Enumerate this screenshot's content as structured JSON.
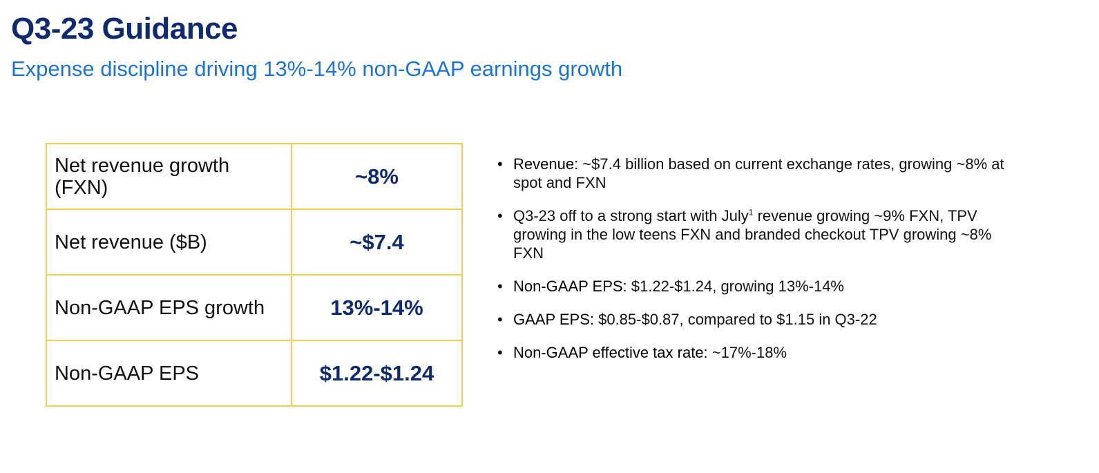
{
  "header": {
    "title": "Q3-23 Guidance",
    "subtitle": "Expense discipline driving 13%-14% non-GAAP earnings growth"
  },
  "table": {
    "rows": [
      {
        "label": "Net revenue growth (FXN)",
        "value": "~8%"
      },
      {
        "label": "Net revenue ($B)",
        "value": "~$7.4"
      },
      {
        "label": "Non-GAAP EPS growth",
        "value": "13%-14%"
      },
      {
        "label": "Non-GAAP EPS",
        "value": "$1.22-$1.24"
      }
    ]
  },
  "bullets": {
    "items": [
      {
        "lead": "Revenue:",
        "text": " ~$7.4 billion based on current exchange rates, growing ~8% at spot and FXN"
      },
      {
        "lead": "",
        "text": "Q3-23 off to a strong start with July",
        "sup": "1",
        "text2": " revenue growing ~9% FXN, TPV growing in the low teens FXN and branded checkout TPV growing ~8% FXN"
      },
      {
        "lead": "Non-GAAP EPS:",
        "text": " $1.22-$1.24, growing 13%-14%"
      },
      {
        "lead": "GAAP EPS:",
        "text": " $0.85-$0.87, compared to $1.15 in Q3-22"
      },
      {
        "lead": "Non-GAAP effective tax rate:",
        "text": " ~17%-18%"
      }
    ]
  },
  "colors": {
    "title": "#0d2b6e",
    "subtitle": "#1a73d9",
    "table_border": "#f5cf4b",
    "value_text": "#0d2b6e"
  }
}
